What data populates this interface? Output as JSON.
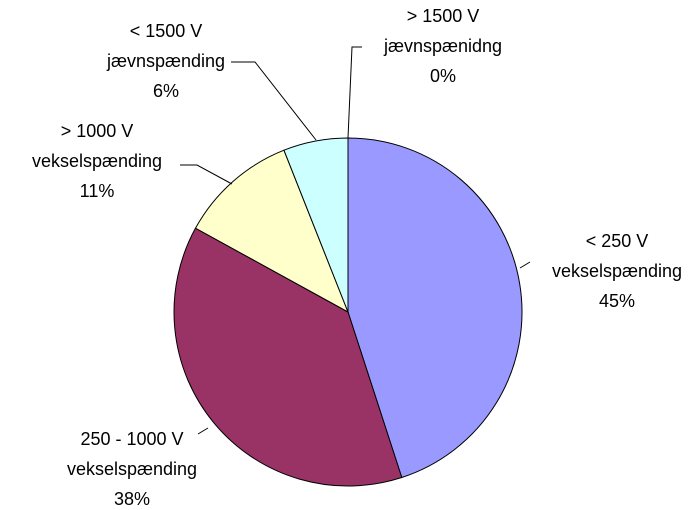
{
  "chart_data": {
    "type": "pie",
    "categories": [
      [
        "< 250 V",
        "vekselspænding"
      ],
      [
        "250 - 1000 V",
        "vekselspænding"
      ],
      [
        "> 1000 V",
        "vekselspænding"
      ],
      [
        "< 1500 V",
        "jævnspænding"
      ],
      [
        "> 1500 V",
        "jævnspænidng"
      ]
    ],
    "values": [
      45,
      38,
      11,
      6,
      0
    ],
    "value_labels": [
      "45%",
      "38%",
      "11%",
      "6%",
      "0%"
    ],
    "colors": [
      "#9999ff",
      "#993366",
      "#ffffcc",
      "#ccffff",
      "#ffffff"
    ]
  }
}
